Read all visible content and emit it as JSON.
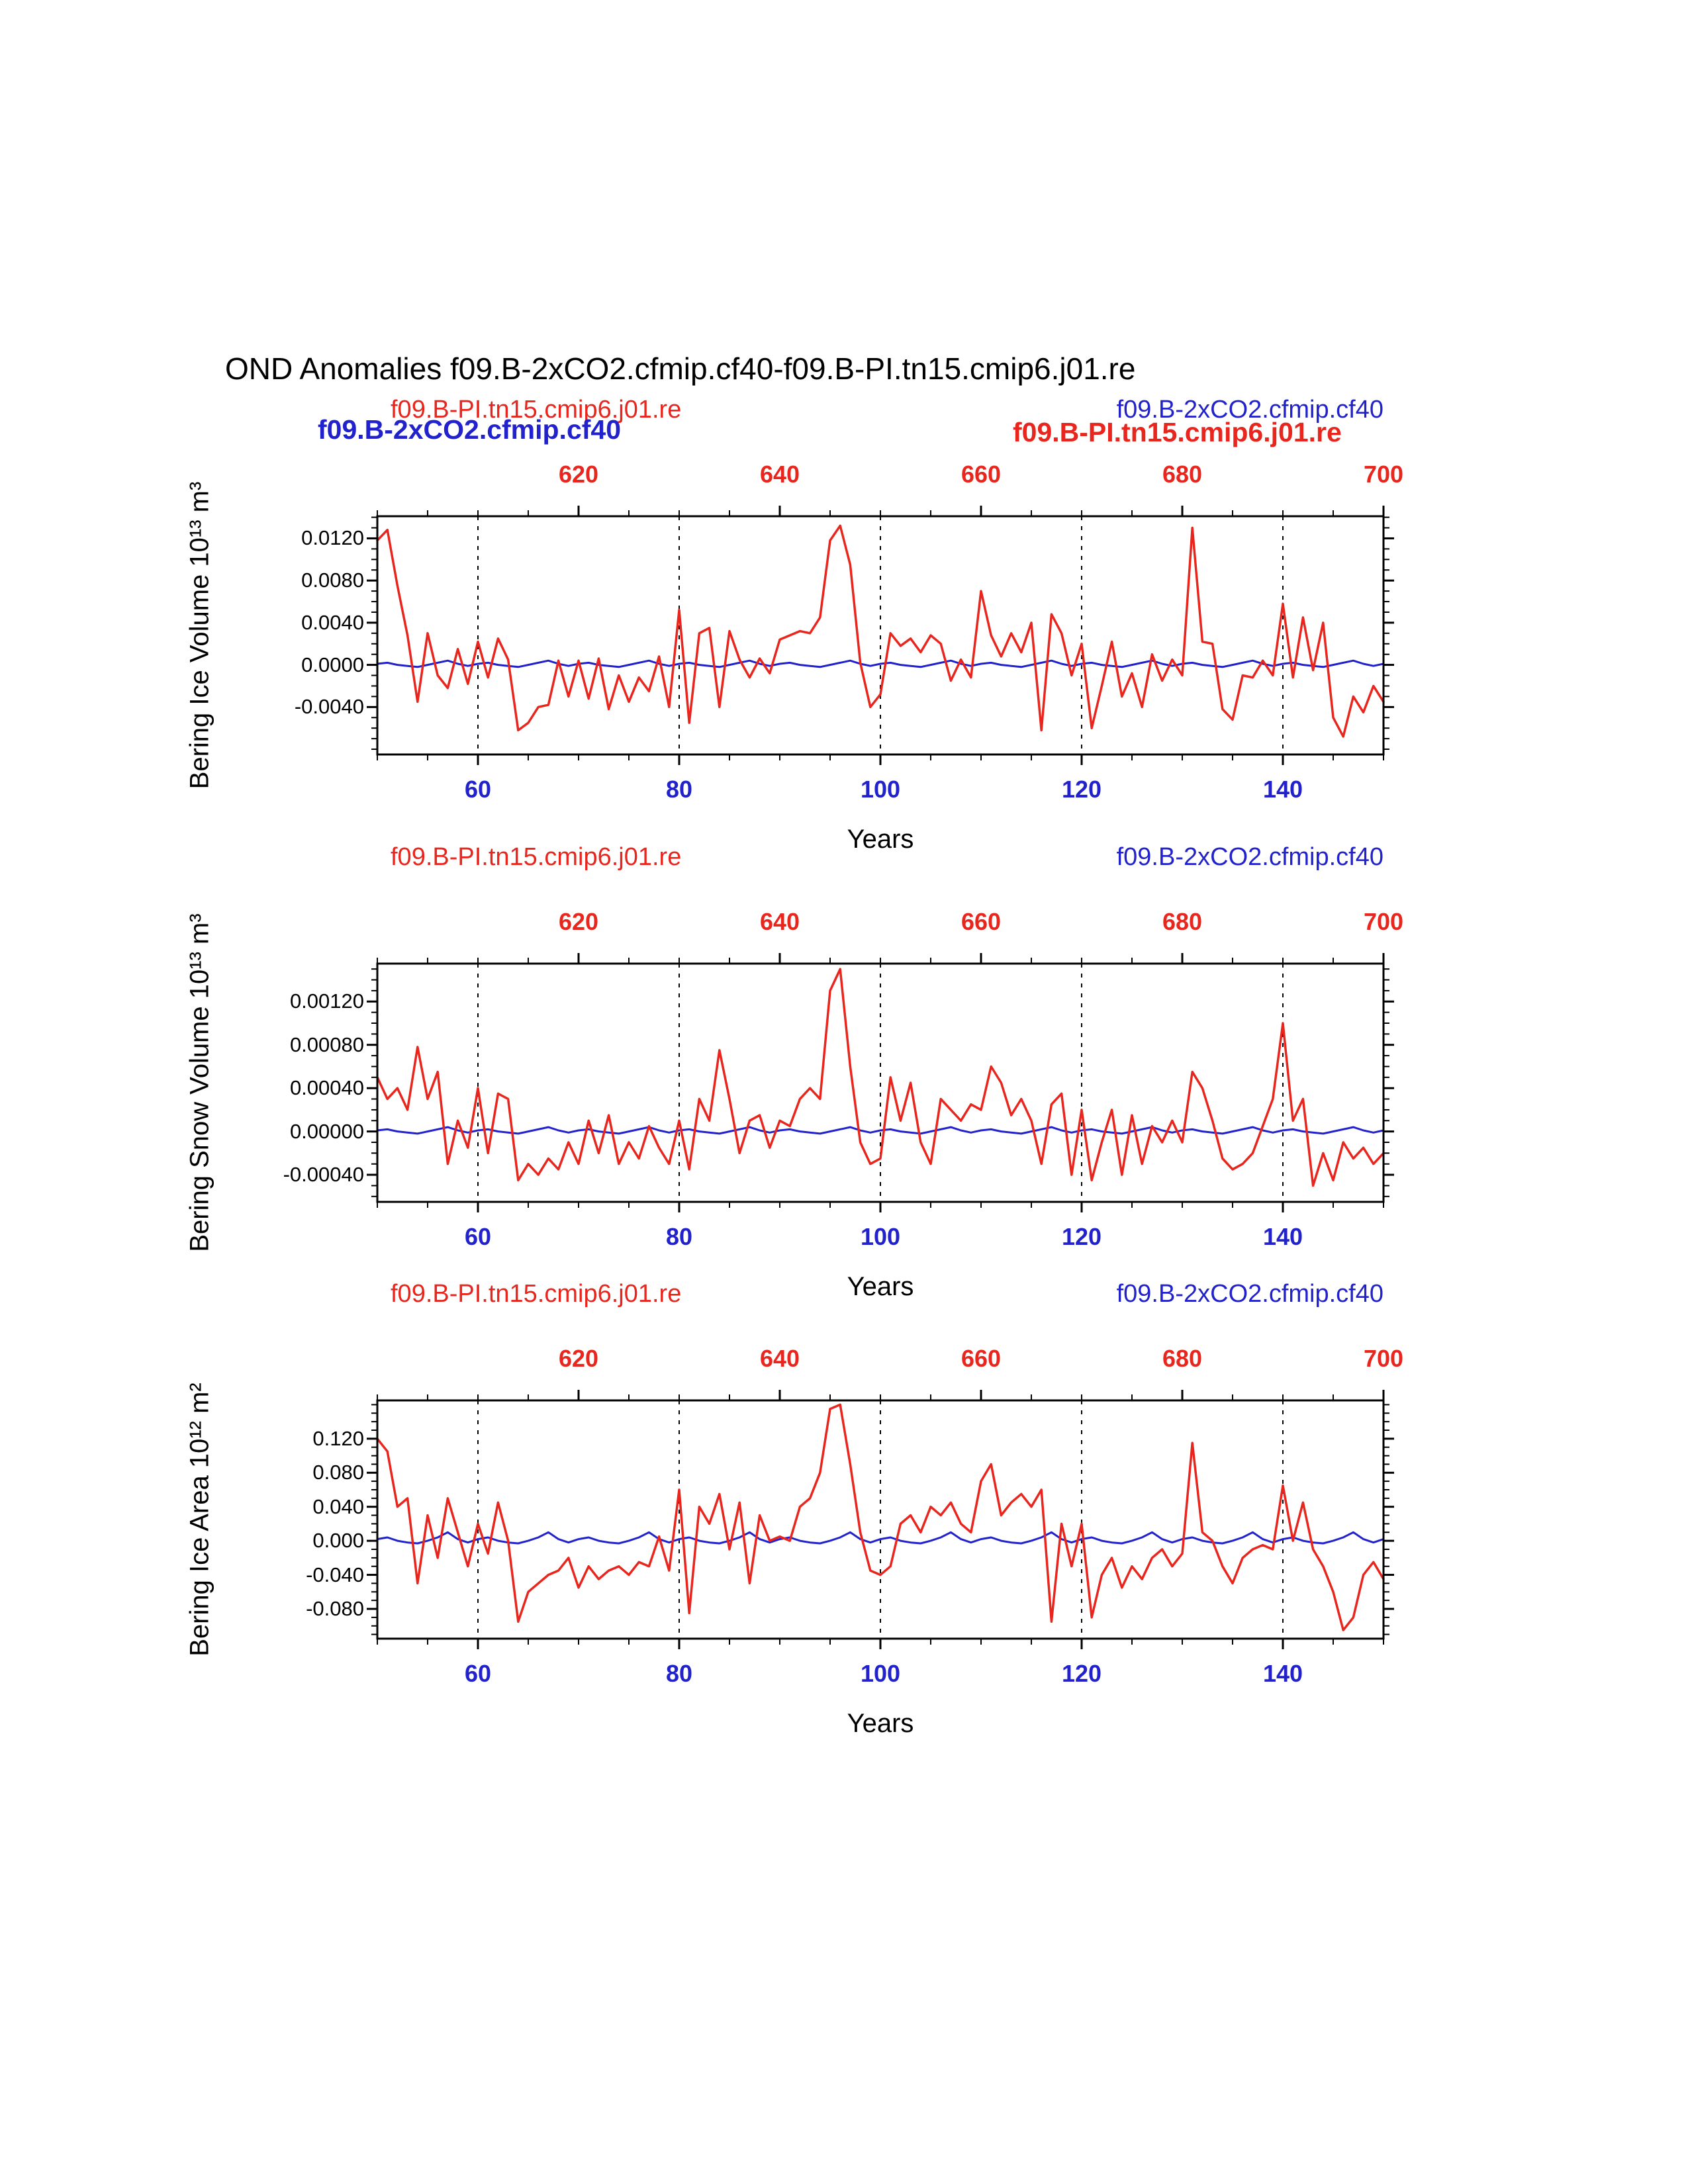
{
  "page": {
    "title": "OND Anomalies f09.B-2xCO2.cfmip.cf40-f09.B-PI.tn15.cmip6.j01.re"
  },
  "colors": {
    "red": "#e8261d",
    "blue": "#2222cc",
    "axis": "#000000",
    "background": "#ffffff"
  },
  "overlays": {
    "bold_blue": "f09.B-2xCO2.cfmip.cf40",
    "bold_red": "f09.B-PI.tn15.cmip6.j01.re"
  },
  "years": [
    50,
    51,
    52,
    53,
    54,
    55,
    56,
    57,
    58,
    59,
    60,
    61,
    62,
    63,
    64,
    65,
    66,
    67,
    68,
    69,
    70,
    71,
    72,
    73,
    74,
    75,
    76,
    77,
    78,
    79,
    80,
    81,
    82,
    83,
    84,
    85,
    86,
    87,
    88,
    89,
    90,
    91,
    92,
    93,
    94,
    95,
    96,
    97,
    98,
    99,
    100,
    101,
    102,
    103,
    104,
    105,
    106,
    107,
    108,
    109,
    110,
    111,
    112,
    113,
    114,
    115,
    116,
    117,
    118,
    119,
    120,
    121,
    122,
    123,
    124,
    125,
    126,
    127,
    128,
    129,
    130,
    131,
    132,
    133,
    134,
    135,
    136,
    137,
    138,
    139,
    140,
    141,
    142,
    143,
    144,
    145,
    146,
    147,
    148,
    149,
    150
  ],
  "chart_data": [
    {
      "type": "line",
      "legend_red": "f09.B-PI.tn15.cmip6.j01.re",
      "legend_blue": "f09.B-2xCO2.cfmip.cf40",
      "ylabel": "Bering Ice Volume 10¹³ m³",
      "xlabel": "Years",
      "xlim": [
        50,
        150
      ],
      "ylim": [
        -0.0085,
        0.0141
      ],
      "x_bottom_ticks": [
        60,
        80,
        100,
        120,
        140
      ],
      "x_bottom_labels": [
        "60",
        "80",
        "100",
        "120",
        "140"
      ],
      "x_top_tick_years": [
        70,
        90,
        110,
        130,
        150
      ],
      "x_top_labels": [
        "620",
        "640",
        "660",
        "680",
        "700"
      ],
      "x_minor_step": 5,
      "gridlines_x": [
        60,
        80,
        100,
        120,
        140
      ],
      "y_ticks": [
        0.012,
        0.008,
        0.004,
        0.0,
        -0.004
      ],
      "y_tick_labels": [
        "0.0120",
        "0.0080",
        "0.0040",
        "0.0000",
        "-0.0040"
      ],
      "y_minor_step": 0.001,
      "series": [
        {
          "name": "f09.B-PI.tn15.cmip6.j01.re",
          "color": "red",
          "values": [
            0.0118,
            0.0128,
            0.0075,
            0.0028,
            -0.0035,
            0.003,
            -0.001,
            -0.0022,
            0.0015,
            -0.0018,
            0.0022,
            -0.0012,
            0.0025,
            0.0005,
            -0.0062,
            -0.0055,
            -0.004,
            -0.0038,
            0.0004,
            -0.003,
            0.0004,
            -0.0032,
            0.0006,
            -0.0042,
            -0.001,
            -0.0035,
            -0.0012,
            -0.0025,
            0.0008,
            -0.004,
            0.0052,
            -0.0055,
            0.003,
            0.0035,
            -0.004,
            0.0032,
            0.0005,
            -0.0012,
            0.0006,
            -0.0008,
            0.0024,
            0.0028,
            0.0032,
            0.003,
            0.0045,
            0.0118,
            0.0132,
            0.0095,
            0.0002,
            -0.004,
            -0.0028,
            0.003,
            0.0018,
            0.0025,
            0.0012,
            0.0028,
            0.002,
            -0.0015,
            0.0005,
            -0.0012,
            0.007,
            0.0028,
            0.0008,
            0.003,
            0.0012,
            0.004,
            -0.0062,
            0.0048,
            0.003,
            -0.001,
            0.002,
            -0.006,
            -0.002,
            0.0022,
            -0.003,
            -0.0008,
            -0.004,
            0.001,
            -0.0015,
            0.0005,
            -0.001,
            0.013,
            0.0022,
            0.002,
            -0.0042,
            -0.0052,
            -0.001,
            -0.0012,
            0.0004,
            -0.001,
            0.0058,
            -0.0012,
            0.0045,
            -0.0005,
            0.004,
            -0.005,
            -0.0068,
            -0.003,
            -0.0045,
            -0.002,
            -0.0035
          ]
        },
        {
          "name": "f09.B-2xCO2.cfmip.cf40",
          "color": "blue",
          "values": [
            0.0001,
            0.0002,
            0,
            -0.0001,
            -0.0002,
            0,
            0.0002,
            0.0004,
            0.0001,
            -0.0001,
            0.0001,
            0.0002,
            0,
            -0.0001,
            -0.0002,
            0,
            0.0002,
            0.0004,
            0.0001,
            -0.0001,
            0.0001,
            0.0002,
            0,
            -0.0001,
            -0.0002,
            0,
            0.0002,
            0.0004,
            0.0001,
            -0.0001,
            0.0001,
            0.0002,
            0,
            -0.0001,
            -0.0002,
            0,
            0.0002,
            0.0004,
            0.0001,
            -0.0001,
            0.0001,
            0.0002,
            0,
            -0.0001,
            -0.0002,
            0,
            0.0002,
            0.0004,
            0.0001,
            -0.0001,
            0.0001,
            0.0002,
            0,
            -0.0001,
            -0.0002,
            0,
            0.0002,
            0.0004,
            0.0001,
            -0.0001,
            0.0001,
            0.0002,
            0,
            -0.0001,
            -0.0002,
            0,
            0.0002,
            0.0004,
            0.0001,
            -0.0001,
            0.0001,
            0.0002,
            0,
            -0.0001,
            -0.0002,
            0,
            0.0002,
            0.0004,
            0.0001,
            -0.0001,
            0.0001,
            0.0002,
            0,
            -0.0001,
            -0.0002,
            0,
            0.0002,
            0.0004,
            0.0001,
            -0.0001,
            0.0001,
            0.0002,
            0,
            -0.0001,
            -0.0002,
            0,
            0.0002,
            0.0004,
            0.0001,
            -0.0001,
            0.0001
          ]
        }
      ]
    },
    {
      "type": "line",
      "legend_red": "f09.B-PI.tn15.cmip6.j01.re",
      "legend_blue": "f09.B-2xCO2.cfmip.cf40",
      "ylabel": "Bering Snow Volume 10¹³ m³",
      "xlabel": "Years",
      "xlim": [
        50,
        150
      ],
      "ylim": [
        -0.00065,
        0.00155
      ],
      "x_bottom_ticks": [
        60,
        80,
        100,
        120,
        140
      ],
      "x_bottom_labels": [
        "60",
        "80",
        "100",
        "120",
        "140"
      ],
      "x_top_tick_years": [
        70,
        90,
        110,
        130,
        150
      ],
      "x_top_labels": [
        "620",
        "640",
        "660",
        "680",
        "700"
      ],
      "x_minor_step": 5,
      "gridlines_x": [
        60,
        80,
        100,
        120,
        140
      ],
      "y_ticks": [
        0.0012,
        0.0008,
        0.0004,
        0.0,
        -0.0004
      ],
      "y_tick_labels": [
        "0.00120",
        "0.00080",
        "0.00040",
        "0.00000",
        "-0.00040"
      ],
      "y_minor_step": 0.0001,
      "series": [
        {
          "name": "f09.B-PI.tn15.cmip6.j01.re",
          "color": "red",
          "values": [
            0.0005,
            0.0003,
            0.0004,
            0.0002,
            0.00078,
            0.0003,
            0.00055,
            -0.0003,
            0.0001,
            -0.00015,
            0.0004,
            -0.0002,
            0.00035,
            0.0003,
            -0.00045,
            -0.0003,
            -0.0004,
            -0.00025,
            -0.00035,
            -0.0001,
            -0.0003,
            0.0001,
            -0.0002,
            0.00015,
            -0.0003,
            -0.0001,
            -0.00025,
            5e-05,
            -0.00015,
            -0.0003,
            0.0001,
            -0.00035,
            0.0003,
            0.0001,
            0.00075,
            0.0003,
            -0.0002,
            0.0001,
            0.00015,
            -0.00015,
            0.0001,
            5e-05,
            0.0003,
            0.0004,
            0.0003,
            0.0013,
            0.0015,
            0.0006,
            -0.0001,
            -0.0003,
            -0.00025,
            0.0005,
            0.0001,
            0.00045,
            -0.0001,
            -0.0003,
            0.0003,
            0.0002,
            0.0001,
            0.00025,
            0.0002,
            0.0006,
            0.00045,
            0.00015,
            0.0003,
            0.0001,
            -0.0003,
            0.00025,
            0.00035,
            -0.0004,
            0.0002,
            -0.00045,
            -0.0001,
            0.0002,
            -0.0004,
            0.00015,
            -0.0003,
            5e-05,
            -0.0001,
            0.0001,
            -0.0001,
            0.00055,
            0.0004,
            0.0001,
            -0.00025,
            -0.00035,
            -0.0003,
            -0.0002,
            5e-05,
            0.0003,
            0.001,
            0.0001,
            0.0003,
            -0.0005,
            -0.0002,
            -0.00045,
            -0.0001,
            -0.00025,
            -0.00015,
            -0.0003,
            -0.0002
          ]
        },
        {
          "name": "f09.B-2xCO2.cfmip.cf40",
          "color": "blue",
          "values": [
            1e-05,
            2e-05,
            0,
            -1e-05,
            -2e-05,
            0,
            2e-05,
            4e-05,
            1e-05,
            -1e-05,
            1e-05,
            2e-05,
            0,
            -1e-05,
            -2e-05,
            0,
            2e-05,
            4e-05,
            1e-05,
            -1e-05,
            1e-05,
            2e-05,
            0,
            -1e-05,
            -2e-05,
            0,
            2e-05,
            4e-05,
            1e-05,
            -1e-05,
            1e-05,
            2e-05,
            0,
            -1e-05,
            -2e-05,
            0,
            2e-05,
            4e-05,
            1e-05,
            -1e-05,
            1e-05,
            2e-05,
            0,
            -1e-05,
            -2e-05,
            0,
            2e-05,
            4e-05,
            1e-05,
            -1e-05,
            1e-05,
            2e-05,
            0,
            -1e-05,
            -2e-05,
            0,
            2e-05,
            4e-05,
            1e-05,
            -1e-05,
            1e-05,
            2e-05,
            0,
            -1e-05,
            -2e-05,
            0,
            2e-05,
            4e-05,
            1e-05,
            -1e-05,
            1e-05,
            2e-05,
            0,
            -1e-05,
            -2e-05,
            0,
            2e-05,
            4e-05,
            1e-05,
            -1e-05,
            1e-05,
            2e-05,
            0,
            -1e-05,
            -2e-05,
            0,
            2e-05,
            4e-05,
            1e-05,
            -1e-05,
            1e-05,
            2e-05,
            0,
            -1e-05,
            -2e-05,
            0,
            2e-05,
            4e-05,
            1e-05,
            -1e-05,
            1e-05
          ]
        }
      ]
    },
    {
      "type": "line",
      "legend_red": "f09.B-PI.tn15.cmip6.j01.re",
      "legend_blue": "f09.B-2xCO2.cfmip.cf40",
      "ylabel": "Bering Ice Area 10¹² m²",
      "xlabel": "Years",
      "xlim": [
        50,
        150
      ],
      "ylim": [
        -0.115,
        0.165
      ],
      "x_bottom_ticks": [
        60,
        80,
        100,
        120,
        140
      ],
      "x_bottom_labels": [
        "60",
        "80",
        "100",
        "120",
        "140"
      ],
      "x_top_tick_years": [
        70,
        90,
        110,
        130,
        150
      ],
      "x_top_labels": [
        "620",
        "640",
        "660",
        "680",
        "700"
      ],
      "x_minor_step": 5,
      "gridlines_x": [
        60,
        80,
        100,
        120,
        140
      ],
      "y_ticks": [
        0.12,
        0.08,
        0.04,
        0.0,
        -0.04,
        -0.08
      ],
      "y_tick_labels": [
        "0.120",
        "0.080",
        "0.040",
        "0.000",
        "-0.040",
        "-0.080"
      ],
      "y_minor_step": 0.01,
      "series": [
        {
          "name": "f09.B-PI.tn15.cmip6.j01.re",
          "color": "red",
          "values": [
            0.12,
            0.105,
            0.04,
            0.05,
            -0.05,
            0.03,
            -0.02,
            0.05,
            0.01,
            -0.03,
            0.02,
            -0.015,
            0.045,
            0.0,
            -0.095,
            -0.06,
            -0.05,
            -0.04,
            -0.035,
            -0.02,
            -0.055,
            -0.03,
            -0.045,
            -0.035,
            -0.03,
            -0.04,
            -0.025,
            -0.03,
            0.005,
            -0.035,
            0.06,
            -0.085,
            0.04,
            0.02,
            0.055,
            -0.01,
            0.045,
            -0.05,
            0.03,
            0.0,
            0.005,
            0.0,
            0.04,
            0.05,
            0.08,
            0.155,
            0.16,
            0.09,
            0.01,
            -0.035,
            -0.04,
            -0.03,
            0.02,
            0.03,
            0.01,
            0.04,
            0.03,
            0.045,
            0.02,
            0.01,
            0.07,
            0.09,
            0.03,
            0.045,
            0.055,
            0.04,
            0.06,
            -0.095,
            0.02,
            -0.03,
            0.02,
            -0.09,
            -0.04,
            -0.02,
            -0.055,
            -0.03,
            -0.045,
            -0.02,
            -0.01,
            -0.03,
            -0.015,
            0.115,
            0.01,
            0.0,
            -0.03,
            -0.05,
            -0.02,
            -0.01,
            -0.005,
            -0.01,
            0.065,
            0.0,
            0.045,
            -0.01,
            -0.03,
            -0.06,
            -0.105,
            -0.09,
            -0.04,
            -0.025,
            -0.045
          ]
        },
        {
          "name": "f09.B-2xCO2.cfmip.cf40",
          "color": "blue",
          "values": [
            0.002,
            0.004,
            0,
            -0.002,
            -0.003,
            0,
            0.004,
            0.01,
            0.002,
            -0.002,
            0.002,
            0.004,
            0,
            -0.002,
            -0.003,
            0,
            0.004,
            0.01,
            0.002,
            -0.002,
            0.002,
            0.004,
            0,
            -0.002,
            -0.003,
            0,
            0.004,
            0.01,
            0.002,
            -0.002,
            0.002,
            0.004,
            0,
            -0.002,
            -0.003,
            0,
            0.004,
            0.01,
            0.002,
            -0.002,
            0.002,
            0.004,
            0,
            -0.002,
            -0.003,
            0,
            0.004,
            0.01,
            0.002,
            -0.002,
            0.002,
            0.004,
            0,
            -0.002,
            -0.003,
            0,
            0.004,
            0.01,
            0.002,
            -0.002,
            0.002,
            0.004,
            0,
            -0.002,
            -0.003,
            0,
            0.004,
            0.01,
            0.002,
            -0.002,
            0.002,
            0.004,
            0,
            -0.002,
            -0.003,
            0,
            0.004,
            0.01,
            0.002,
            -0.002,
            0.002,
            0.004,
            0,
            -0.002,
            -0.003,
            0,
            0.004,
            0.01,
            0.002,
            -0.002,
            0.002,
            0.004,
            0,
            -0.002,
            -0.003,
            0,
            0.004,
            0.01,
            0.002,
            -0.002,
            0.002
          ]
        }
      ]
    }
  ]
}
